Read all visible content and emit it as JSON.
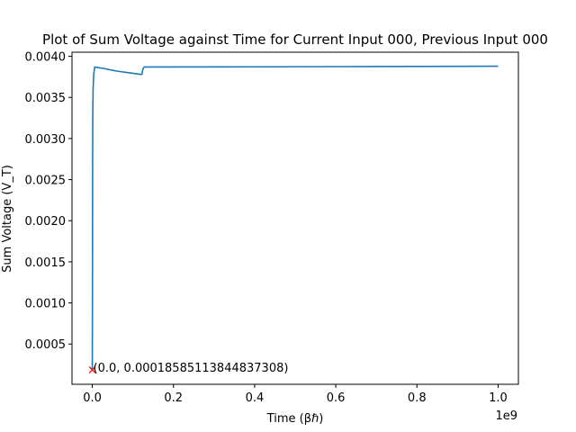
{
  "chart_data": {
    "type": "line",
    "title": "Plot of Sum Voltage against Time for Current Input 000, Previous Input 000",
    "xlabel": "Time (βℏ)",
    "ylabel": "Sum Voltage (V_T)",
    "x_offset_label": "1e9",
    "xlim": [
      -50000000,
      1050000000
    ],
    "ylim": [
      1e-05,
      0.00405
    ],
    "x_ticks": [
      0,
      200000000,
      400000000,
      600000000,
      800000000,
      1000000000
    ],
    "x_tick_labels": [
      "0.0",
      "0.2",
      "0.4",
      "0.6",
      "0.8",
      "1.0"
    ],
    "y_ticks": [
      0.0005,
      0.001,
      0.0015,
      0.002,
      0.0025,
      0.003,
      0.0035,
      0.004
    ],
    "y_tick_labels": [
      "0.0005",
      "0.0010",
      "0.0015",
      "0.0020",
      "0.0025",
      "0.0030",
      "0.0035",
      "0.0040"
    ],
    "grid": false,
    "series": [
      {
        "color": "#1f77b4",
        "x": [
          0,
          400000,
          800000,
          1200000,
          2000000,
          3500000,
          6000000,
          30000000,
          60000000,
          90000000,
          120000000,
          122000000,
          125000000,
          128000000,
          131000000,
          400000000,
          700000000,
          1000000000
        ],
        "y": [
          0.000186,
          0.0011,
          0.0026,
          0.0033,
          0.0036,
          0.00378,
          0.00387,
          0.00385,
          0.00382,
          0.0038,
          0.00378,
          0.00378,
          0.00385,
          0.00387,
          0.00387,
          0.003872,
          0.003876,
          0.00388
        ]
      }
    ],
    "markers": [
      {
        "x": 0,
        "y": 0.00018585113844837308,
        "symbol": "x",
        "color": "#ff0000"
      }
    ],
    "annotations": [
      {
        "text": "(0.0, 0.00018585113844837308)",
        "x": 0,
        "y": 0.00018585113844837308
      }
    ]
  }
}
